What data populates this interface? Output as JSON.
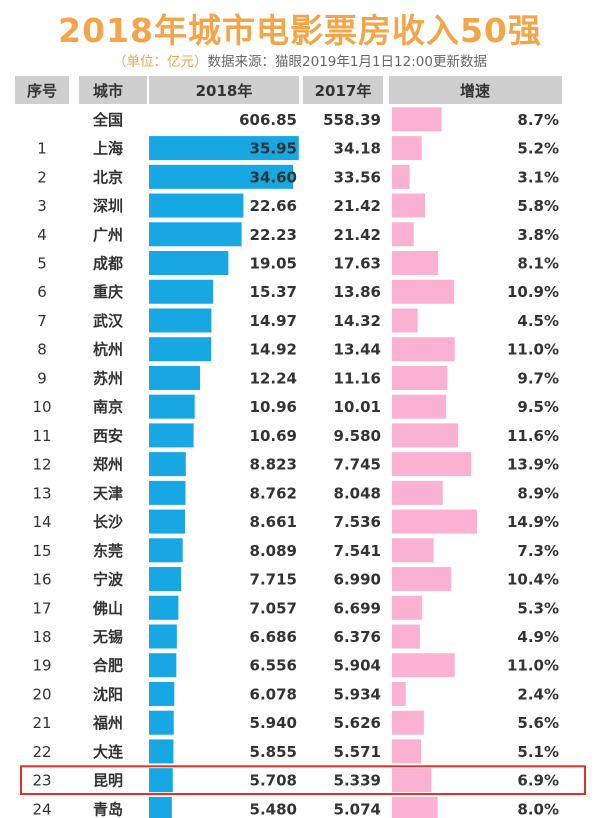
{
  "header": {
    "title": "2018年城市电影票房收入50强",
    "unit": "（单位：亿元）",
    "source": "数据来源：猫眼2019年1月1日12:00更新数据"
  },
  "columns": [
    "序号",
    "城市",
    "2018年",
    "2017年",
    "增速"
  ],
  "colors": {
    "header_bg": "#cfcfcf",
    "bar_2018": "#17a7e3",
    "bar_growth": "#fbb1d2",
    "highlight_border": "#e0302a",
    "title": "#f3a54a"
  },
  "highlight_rank": "23",
  "chart_data": {
    "type": "table",
    "title": "2018年城市电影票房收入50强",
    "unit": "亿元",
    "rows": [
      {
        "rank": "",
        "city": "全国",
        "v2018": "606.85",
        "v2017": "558.39",
        "growth": "8.7%"
      },
      {
        "rank": "1",
        "city": "上海",
        "v2018": "35.95",
        "v2017": "34.18",
        "growth": "5.2%"
      },
      {
        "rank": "2",
        "city": "北京",
        "v2018": "34.60",
        "v2017": "33.56",
        "growth": "3.1%"
      },
      {
        "rank": "3",
        "city": "深圳",
        "v2018": "22.66",
        "v2017": "21.42",
        "growth": "5.8%"
      },
      {
        "rank": "4",
        "city": "广州",
        "v2018": "22.23",
        "v2017": "21.42",
        "growth": "3.8%"
      },
      {
        "rank": "5",
        "city": "成都",
        "v2018": "19.05",
        "v2017": "17.63",
        "growth": "8.1%"
      },
      {
        "rank": "6",
        "city": "重庆",
        "v2018": "15.37",
        "v2017": "13.86",
        "growth": "10.9%"
      },
      {
        "rank": "7",
        "city": "武汉",
        "v2018": "14.97",
        "v2017": "14.32",
        "growth": "4.5%"
      },
      {
        "rank": "8",
        "city": "杭州",
        "v2018": "14.92",
        "v2017": "13.44",
        "growth": "11.0%"
      },
      {
        "rank": "9",
        "city": "苏州",
        "v2018": "12.24",
        "v2017": "11.16",
        "growth": "9.7%"
      },
      {
        "rank": "10",
        "city": "南京",
        "v2018": "10.96",
        "v2017": "10.01",
        "growth": "9.5%"
      },
      {
        "rank": "11",
        "city": "西安",
        "v2018": "10.69",
        "v2017": "9.580",
        "growth": "11.6%"
      },
      {
        "rank": "12",
        "city": "郑州",
        "v2018": "8.823",
        "v2017": "7.745",
        "growth": "13.9%"
      },
      {
        "rank": "13",
        "city": "天津",
        "v2018": "8.762",
        "v2017": "8.048",
        "growth": "8.9%"
      },
      {
        "rank": "14",
        "city": "长沙",
        "v2018": "8.661",
        "v2017": "7.536",
        "growth": "14.9%"
      },
      {
        "rank": "15",
        "city": "东莞",
        "v2018": "8.089",
        "v2017": "7.541",
        "growth": "7.3%"
      },
      {
        "rank": "16",
        "city": "宁波",
        "v2018": "7.715",
        "v2017": "6.990",
        "growth": "10.4%"
      },
      {
        "rank": "17",
        "city": "佛山",
        "v2018": "7.057",
        "v2017": "6.699",
        "growth": "5.3%"
      },
      {
        "rank": "18",
        "city": "无锡",
        "v2018": "6.686",
        "v2017": "6.376",
        "growth": "4.9%"
      },
      {
        "rank": "19",
        "city": "合肥",
        "v2018": "6.556",
        "v2017": "5.904",
        "growth": "11.0%"
      },
      {
        "rank": "20",
        "city": "沈阳",
        "v2018": "6.078",
        "v2017": "5.934",
        "growth": "2.4%"
      },
      {
        "rank": "21",
        "city": "福州",
        "v2018": "5.940",
        "v2017": "5.626",
        "growth": "5.6%"
      },
      {
        "rank": "22",
        "city": "大连",
        "v2018": "5.855",
        "v2017": "5.571",
        "growth": "5.1%"
      },
      {
        "rank": "23",
        "city": "昆明",
        "v2018": "5.708",
        "v2017": "5.339",
        "growth": "6.9%"
      },
      {
        "rank": "24",
        "city": "青岛",
        "v2018": "5.480",
        "v2017": "5.074",
        "growth": "8.0%"
      }
    ]
  }
}
